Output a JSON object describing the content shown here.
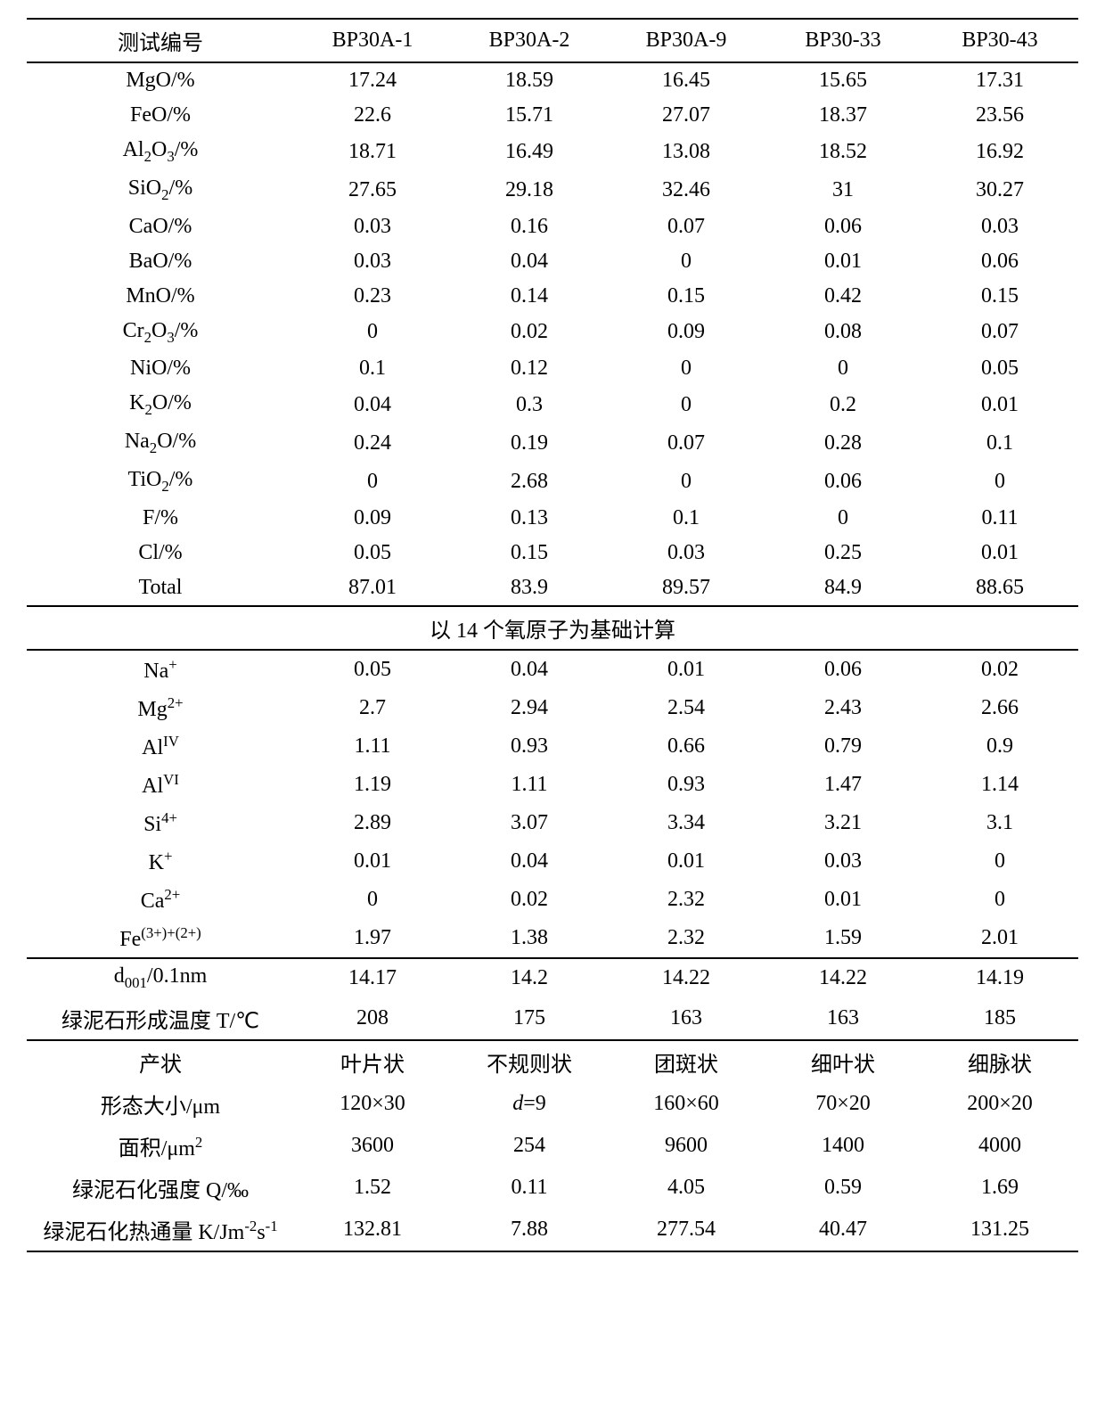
{
  "header": {
    "label_col": "测试编号",
    "cols": [
      "BP30A-1",
      "BP30A-2",
      "BP30A-9",
      "BP30-33",
      "BP30-43"
    ]
  },
  "section1_rows": [
    {
      "label_html": "MgO/%",
      "vals": [
        "17.24",
        "18.59",
        "16.45",
        "15.65",
        "17.31"
      ]
    },
    {
      "label_html": "FeO/%",
      "vals": [
        "22.6",
        "15.71",
        "27.07",
        "18.37",
        "23.56"
      ]
    },
    {
      "label_html": "Al<sub>2</sub>O<sub>3</sub>/%",
      "vals": [
        "18.71",
        "16.49",
        "13.08",
        "18.52",
        "16.92"
      ]
    },
    {
      "label_html": "SiO<sub>2</sub>/%",
      "vals": [
        "27.65",
        "29.18",
        "32.46",
        "31",
        "30.27"
      ]
    },
    {
      "label_html": "CaO/%",
      "vals": [
        "0.03",
        "0.16",
        "0.07",
        "0.06",
        "0.03"
      ]
    },
    {
      "label_html": "BaO/%",
      "vals": [
        "0.03",
        "0.04",
        "0",
        "0.01",
        "0.06"
      ]
    },
    {
      "label_html": "MnO/%",
      "vals": [
        "0.23",
        "0.14",
        "0.15",
        "0.42",
        "0.15"
      ]
    },
    {
      "label_html": "Cr<sub>2</sub>O<sub>3</sub>/%",
      "vals": [
        "0",
        "0.02",
        "0.09",
        "0.08",
        "0.07"
      ]
    },
    {
      "label_html": "NiO/%",
      "vals": [
        "0.1",
        "0.12",
        "0",
        "0",
        "0.05"
      ]
    },
    {
      "label_html": "K<sub>2</sub>O/%",
      "vals": [
        "0.04",
        "0.3",
        "0",
        "0.2",
        "0.01"
      ]
    },
    {
      "label_html": "Na<sub>2</sub>O/%",
      "vals": [
        "0.24",
        "0.19",
        "0.07",
        "0.28",
        "0.1"
      ]
    },
    {
      "label_html": "TiO<sub>2</sub>/%",
      "vals": [
        "0",
        "2.68",
        "0",
        "0.06",
        "0"
      ]
    },
    {
      "label_html": "F/%",
      "vals": [
        "0.09",
        "0.13",
        "0.1",
        "0",
        "0.11"
      ]
    },
    {
      "label_html": "Cl/%",
      "vals": [
        "0.05",
        "0.15",
        "0.03",
        "0.25",
        "0.01"
      ]
    },
    {
      "label_html": "Total",
      "vals": [
        "87.01",
        "83.9",
        "89.57",
        "84.9",
        "88.65"
      ]
    }
  ],
  "section2_header": "以 14 个氧原子为基础计算",
  "section2_rows": [
    {
      "label_html": "Na<sup>+</sup>",
      "vals": [
        "0.05",
        "0.04",
        "0.01",
        "0.06",
        "0.02"
      ]
    },
    {
      "label_html": "Mg<sup>2+</sup>",
      "vals": [
        "2.7",
        "2.94",
        "2.54",
        "2.43",
        "2.66"
      ]
    },
    {
      "label_html": "Al<sup>IV</sup>",
      "vals": [
        "1.11",
        "0.93",
        "0.66",
        "0.79",
        "0.9"
      ]
    },
    {
      "label_html": "Al<sup>VI</sup>",
      "vals": [
        "1.19",
        "1.11",
        "0.93",
        "1.47",
        "1.14"
      ]
    },
    {
      "label_html": "Si<sup>4+</sup>",
      "vals": [
        "2.89",
        "3.07",
        "3.34",
        "3.21",
        "3.1"
      ]
    },
    {
      "label_html": "K<sup>+</sup>",
      "vals": [
        "0.01",
        "0.04",
        "0.01",
        "0.03",
        "0"
      ]
    },
    {
      "label_html": "Ca<sup>2+</sup>",
      "vals": [
        "0",
        "0.02",
        "2.32",
        "0.01",
        "0"
      ]
    },
    {
      "label_html": "Fe<sup>(3+)+(2+)</sup>",
      "vals": [
        "1.97",
        "1.38",
        "2.32",
        "1.59",
        "2.01"
      ]
    }
  ],
  "section3_rows": [
    {
      "label_html": "d<sub>001</sub>/0.1nm",
      "vals": [
        "14.17",
        "14.2",
        "14.22",
        "14.22",
        "14.19"
      ]
    },
    {
      "label_html": "绿泥石形成温度 T/℃",
      "vals": [
        "208",
        "175",
        "163",
        "163",
        "185"
      ]
    }
  ],
  "section4_rows": [
    {
      "label_html": "产状",
      "vals": [
        "叶片状",
        "不规则状",
        "团斑状",
        "细叶状",
        "细脉状"
      ]
    },
    {
      "label_html": "形态大小/μm",
      "vals_html": [
        "120×30",
        "<span class=\"italic\">d</span>=9",
        "160×60",
        "70×20",
        "200×20"
      ]
    },
    {
      "label_html": "面积/μm<sup>2</sup>",
      "vals": [
        "3600",
        "254",
        "9600",
        "1400",
        "4000"
      ]
    },
    {
      "label_html": "绿泥石化强度 Q/‰",
      "vals": [
        "1.52",
        "0.11",
        "4.05",
        "0.59",
        "1.69"
      ]
    },
    {
      "label_html": "绿泥石化热通量 K/Jm<sup>-2</sup>s<sup>-1</sup>",
      "vals": [
        "132.81",
        "7.88",
        "277.54",
        "40.47",
        "131.25"
      ]
    }
  ]
}
